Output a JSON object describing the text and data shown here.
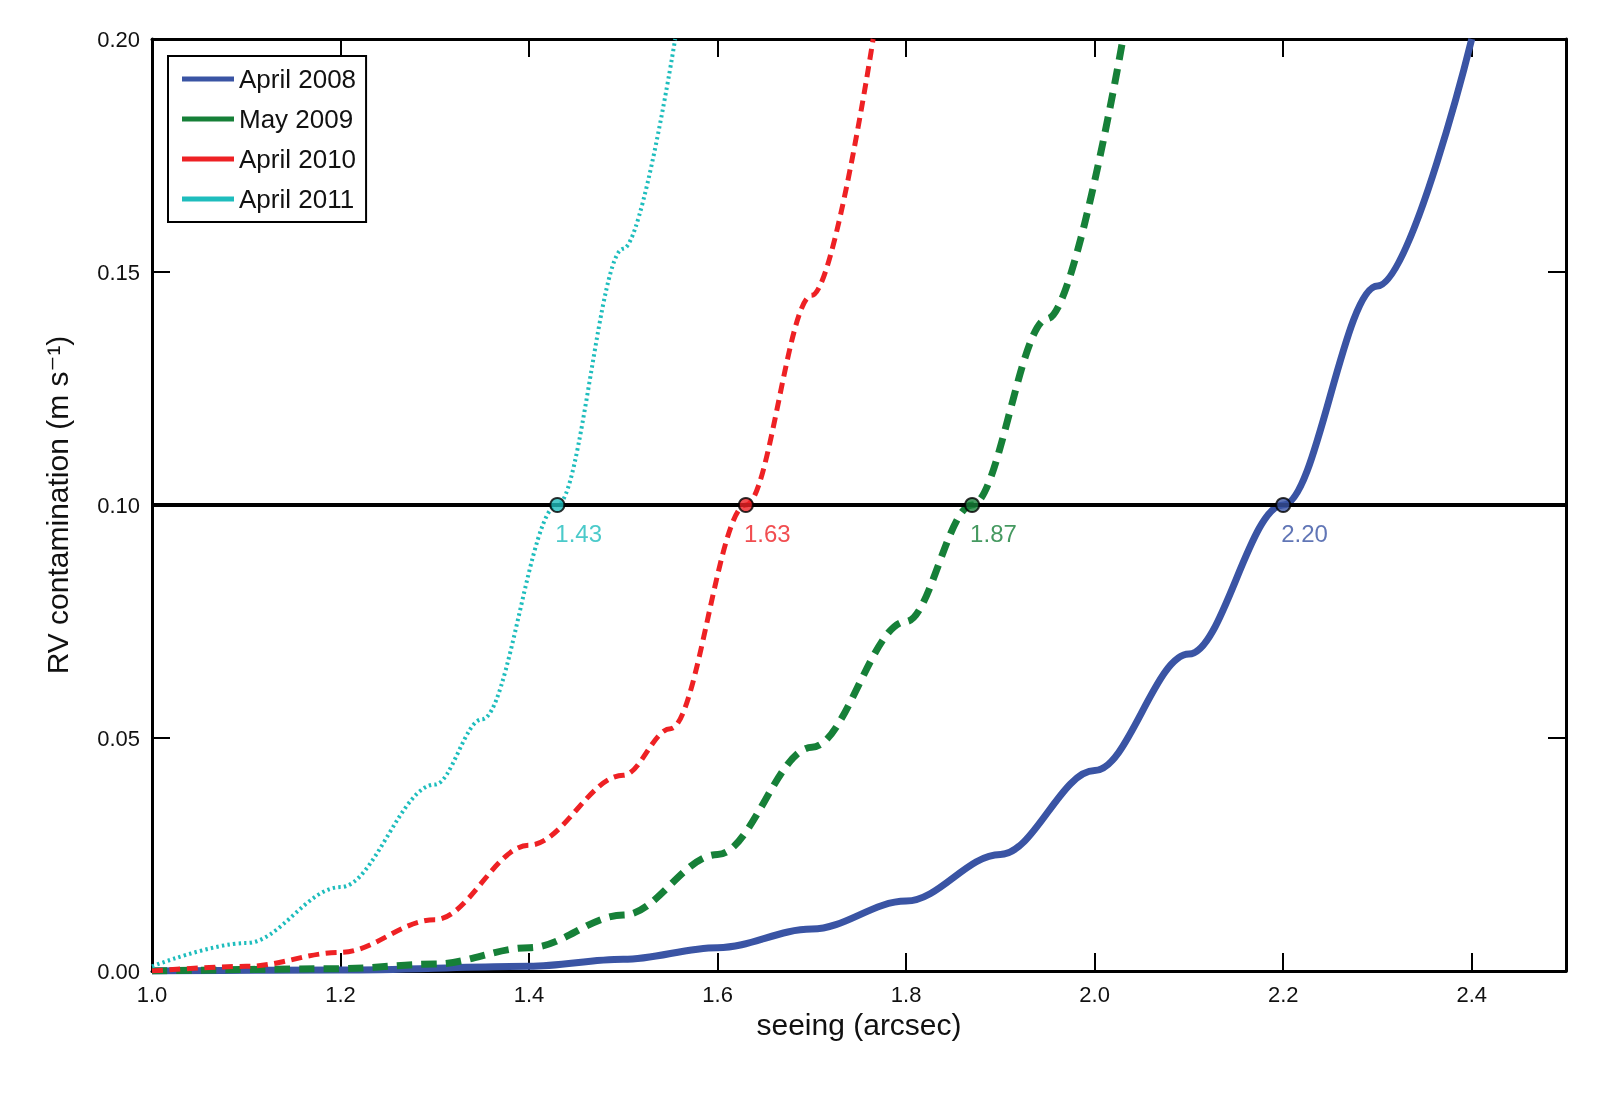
{
  "chart_data": {
    "type": "line",
    "xlabel": "seeing (arcsec)",
    "ylabel": "RV contamination (m s⁻¹)",
    "xlim": [
      1.0,
      2.5
    ],
    "ylim": [
      0,
      0.2
    ],
    "xticks": [
      {
        "value": 1,
        "label": "1.0"
      },
      {
        "value": 1.2,
        "label": "1.2"
      },
      {
        "value": 1.4,
        "label": "1.4"
      },
      {
        "value": 1.6,
        "label": "1.6"
      },
      {
        "value": 1.8,
        "label": "1.8"
      },
      {
        "value": 2,
        "label": "2.0"
      },
      {
        "value": 2.2,
        "label": "2.2"
      },
      {
        "value": 2.4,
        "label": "2.4"
      }
    ],
    "yticks": [
      {
        "value": 0,
        "label": "0.00"
      },
      {
        "value": 0.05,
        "label": "0.05"
      },
      {
        "value": 0.1,
        "label": "0.10"
      },
      {
        "value": 0.15,
        "label": "0.15"
      },
      {
        "value": 0.2,
        "label": "0.20"
      }
    ],
    "grid": false,
    "legend": "top left",
    "marker": "none",
    "series": [
      {
        "name": "April 2008",
        "color": "#3a54a4",
        "line_style": "solid",
        "x": [
          1.0,
          1.2,
          1.4,
          1.5,
          1.6,
          1.7,
          1.8,
          1.9,
          2.0,
          2.1,
          2.2,
          2.3,
          2.4
        ],
        "values": [
          0.0,
          0.0002,
          0.001,
          0.0025,
          0.005,
          0.009,
          0.015,
          0.025,
          0.043,
          0.068,
          0.1,
          0.147,
          0.2
        ]
      },
      {
        "name": "May 2009",
        "color": "#168038",
        "line_style": "dashed",
        "x": [
          1.0,
          1.2,
          1.3,
          1.4,
          1.5,
          1.6,
          1.7,
          1.8,
          1.87,
          1.95,
          2.03
        ],
        "values": [
          0.0,
          0.0005,
          0.0015,
          0.005,
          0.012,
          0.025,
          0.048,
          0.075,
          0.1,
          0.14,
          0.2
        ]
      },
      {
        "name": "April 2010",
        "color": "#ee2124",
        "line_style": "dashed",
        "x": [
          1.0,
          1.1,
          1.2,
          1.3,
          1.4,
          1.5,
          1.55,
          1.63,
          1.7,
          1.765
        ],
        "values": [
          0.0,
          0.001,
          0.004,
          0.011,
          0.027,
          0.042,
          0.052,
          0.1,
          0.145,
          0.2
        ]
      },
      {
        "name": "April 2011",
        "color": "#1ebdbd",
        "line_style": "dotted",
        "x": [
          1.0,
          1.1,
          1.2,
          1.3,
          1.35,
          1.43,
          1.5,
          1.555
        ],
        "values": [
          0.001,
          0.006,
          0.018,
          0.04,
          0.054,
          0.1,
          0.155,
          0.2
        ]
      }
    ],
    "ref_lines": [
      {
        "axis": "y",
        "value": 0.1,
        "color": "#000000"
      }
    ],
    "annotations": [
      {
        "text": "2.20",
        "x": 2.2,
        "y": 0.1
      },
      {
        "text": "1.87",
        "x": 1.87,
        "y": 0.1
      },
      {
        "text": "1.63",
        "x": 1.63,
        "y": 0.1
      },
      {
        "text": "1.43",
        "x": 1.43,
        "y": 0.1
      }
    ]
  }
}
